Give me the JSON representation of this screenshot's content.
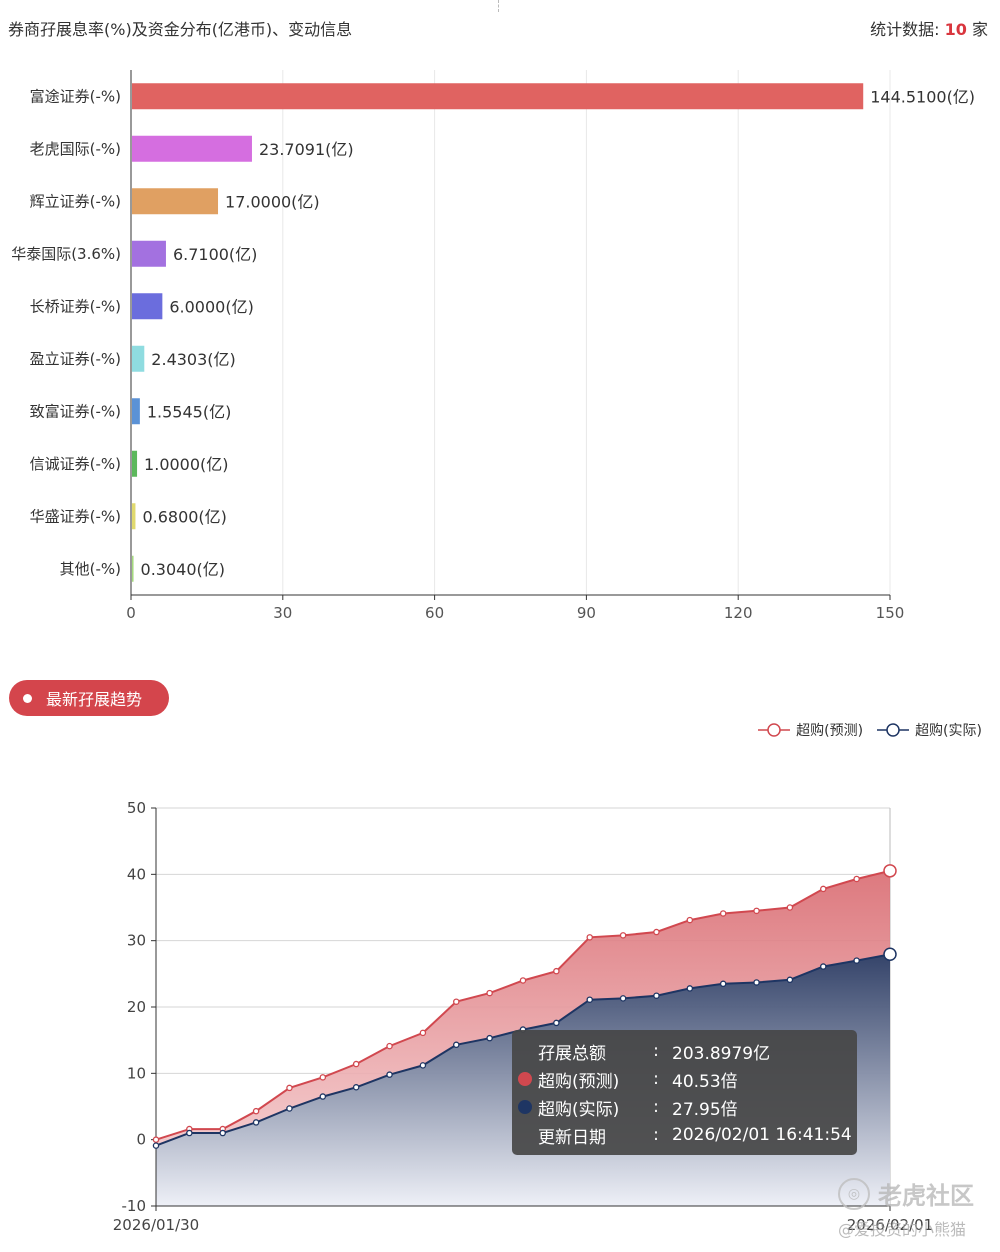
{
  "header": {
    "title": "券商孖展息率(%)及资金分布(亿港币)、变动信息",
    "stat_label": "统计数据:",
    "stat_count": "10",
    "stat_unit": "家"
  },
  "chart_data": [
    {
      "type": "bar",
      "orientation": "horizontal",
      "categories": [
        "富途证券(-%)",
        "老虎国际(-%)",
        "辉立证券(-%)",
        "华泰国际(3.6%)",
        "长桥证券(-%)",
        "盈立证券(-%)",
        "致富证券(-%)",
        "信诚证券(-%)",
        "华盛证券(-%)",
        "其他(-%)"
      ],
      "values": [
        144.51,
        23.7091,
        17.0,
        6.71,
        6.0,
        2.4303,
        1.5545,
        1.0,
        0.68,
        0.304
      ],
      "value_labels": [
        "144.5100(亿)",
        "23.7091(亿)",
        "17.0000(亿)",
        "6.7100(亿)",
        "6.0000(亿)",
        "2.4303(亿)",
        "1.5545(亿)",
        "1.0000(亿)",
        "0.6800(亿)",
        "0.3040(亿)"
      ],
      "colors": [
        "#e06361",
        "#d56ee0",
        "#e0a062",
        "#a371e0",
        "#6b6ddd",
        "#8fdce0",
        "#5b92d6",
        "#5cb85c",
        "#e0d96e",
        "#a5d97e"
      ],
      "xlim": [
        0,
        150
      ],
      "xticks": [
        0,
        30,
        60,
        90,
        120,
        150
      ],
      "grid": true
    },
    {
      "type": "area",
      "title": "最新孖展趋势",
      "x_start_label": "2026/01/30",
      "x_end_label": "2026/02/01",
      "ylim": [
        -10,
        50
      ],
      "yticks": [
        -10,
        0,
        10,
        20,
        30,
        40,
        50
      ],
      "legend_position": "top-right",
      "series": [
        {
          "name": "超购(预测)",
          "color": "#d1484f",
          "values": [
            0.0,
            1.6,
            1.6,
            4.3,
            7.8,
            9.4,
            11.4,
            14.1,
            16.1,
            20.8,
            22.1,
            24.0,
            25.4,
            30.5,
            30.8,
            31.3,
            33.1,
            34.1,
            34.5,
            35.0,
            37.8,
            39.3,
            40.53
          ]
        },
        {
          "name": "超购(实际)",
          "color": "#1e3563",
          "values": [
            -0.9,
            1.0,
            1.0,
            2.6,
            4.7,
            6.5,
            7.9,
            9.8,
            11.2,
            14.3,
            15.3,
            16.6,
            17.6,
            21.1,
            21.3,
            21.7,
            22.8,
            23.5,
            23.7,
            24.1,
            26.1,
            27.0,
            27.95
          ]
        }
      ]
    }
  ],
  "trend_button": {
    "label": "最新孖展趋势"
  },
  "tooltip": {
    "rows": [
      {
        "label": "孖展总额",
        "sep": ":",
        "value": "203.8979亿",
        "color": ""
      },
      {
        "label": "超购(预测)",
        "sep": ":",
        "value": "40.53倍",
        "color": "#d1484f"
      },
      {
        "label": "超购(实际)",
        "sep": ":",
        "value": "27.95倍",
        "color": "#1e3563"
      },
      {
        "label": "更新日期",
        "sep": ":",
        "value": "2026/02/01 16:41:54",
        "color": ""
      }
    ]
  },
  "watermark": {
    "brand": "老虎社区",
    "user": "@爱投资的小熊猫"
  }
}
